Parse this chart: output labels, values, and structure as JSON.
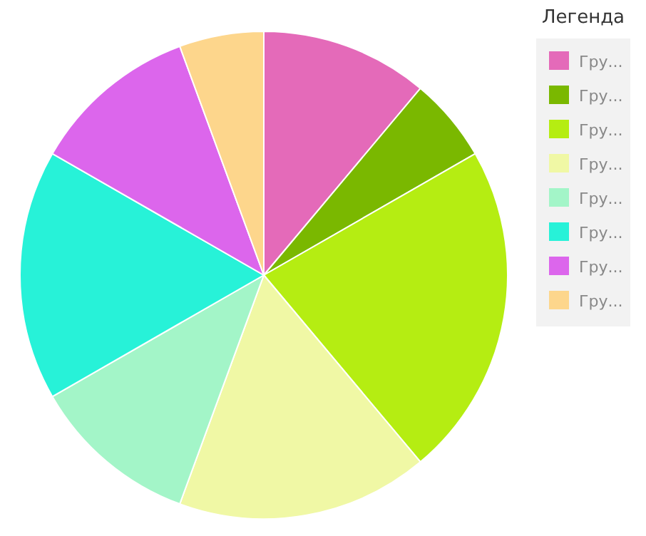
{
  "chart_data": {
    "type": "pie",
    "legend_title": "Легенда",
    "legend": "top right",
    "categories": [
      "Гру...",
      "Гру...",
      "Гру...",
      "Гру...",
      "Гру...",
      "Гру...",
      "Гру...",
      "Гру..."
    ],
    "values": [
      11.1,
      5.6,
      22.2,
      16.7,
      11.1,
      16.6,
      11.1,
      5.6
    ],
    "colors": [
      "#e46ab9",
      "#7ab800",
      "#b5ed12",
      "#f0f8a5",
      "#a3f5c8",
      "#27f2d8",
      "#dc66ec",
      "#fdd68c"
    ]
  }
}
